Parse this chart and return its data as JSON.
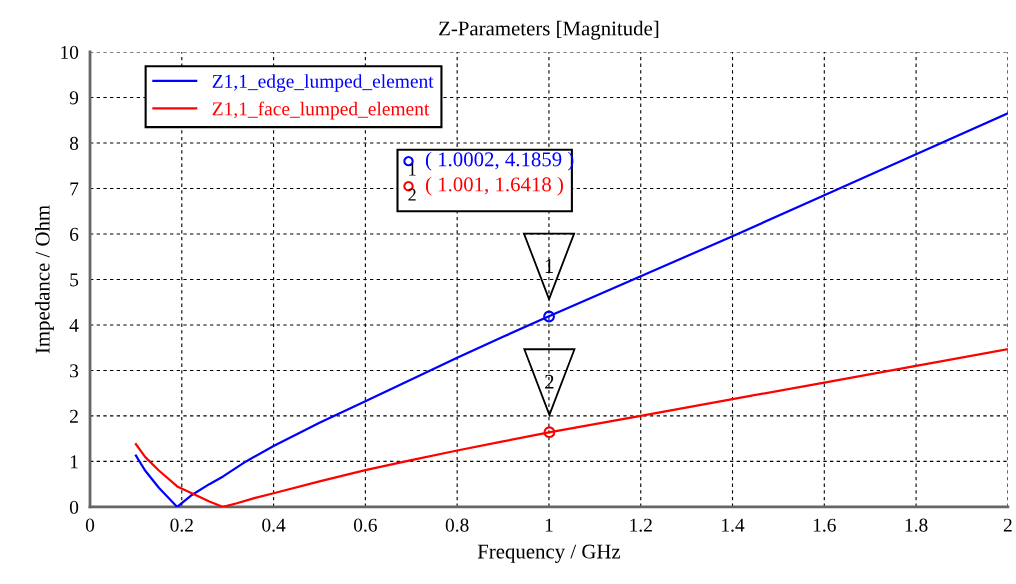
{
  "chart_data": {
    "type": "line",
    "title": "Z-Parameters [Magnitude]",
    "xlabel": "Frequency / GHz",
    "ylabel": "Impedance / Ohm",
    "xlim": [
      0,
      2
    ],
    "xticks": [
      0,
      0.2,
      0.4,
      0.6,
      0.8,
      1,
      1.2,
      1.4,
      1.6,
      1.8,
      2
    ],
    "ylim": [
      0,
      10
    ],
    "yticks": [
      0,
      1,
      2,
      3,
      4,
      5,
      6,
      7,
      8,
      9,
      10
    ],
    "grid": true,
    "legend": "top left",
    "line_style": "solid",
    "marker": "none",
    "series": [
      {
        "name": "Z1,1_edge_lumped_element",
        "color": "#0000ff",
        "x": [
          0.1,
          0.12,
          0.15,
          0.19,
          0.22,
          0.26,
          0.29,
          0.34,
          0.4,
          0.5,
          0.6,
          0.7,
          0.8,
          0.9,
          1.0,
          1.2,
          1.4,
          1.6,
          1.8,
          2.0
        ],
        "values": [
          1.13,
          0.8,
          0.42,
          0.0,
          0.25,
          0.5,
          0.67,
          1.0,
          1.34,
          1.85,
          2.32,
          2.8,
          3.28,
          3.74,
          4.19,
          5.07,
          5.95,
          6.85,
          7.75,
          8.65
        ]
      },
      {
        "name": "Z1,1_face_lumped_element",
        "color": "#ff0000",
        "x": [
          0.1,
          0.12,
          0.15,
          0.19,
          0.23,
          0.26,
          0.29,
          0.32,
          0.36,
          0.4,
          0.5,
          0.6,
          0.7,
          0.8,
          0.9,
          1.0,
          1.2,
          1.4,
          1.6,
          1.8,
          2.0
        ],
        "values": [
          1.38,
          1.1,
          0.8,
          0.45,
          0.26,
          0.12,
          0.0,
          0.08,
          0.2,
          0.3,
          0.56,
          0.81,
          1.03,
          1.24,
          1.44,
          1.64,
          2.0,
          2.37,
          2.73,
          3.1,
          3.47
        ]
      }
    ],
    "annotations": [
      {
        "text": "1",
        "x": 1.0002,
        "y": 4.1859
      },
      {
        "text": "2",
        "x": 1.001,
        "y": 1.6418
      },
      "( 1.0002, 4.1859 )",
      "( 1.001, 1.6418 )"
    ]
  }
}
